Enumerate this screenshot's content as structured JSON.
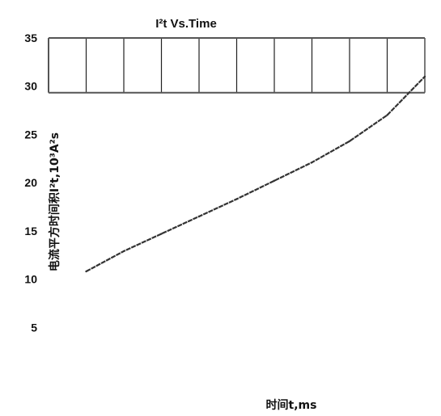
{
  "chart_data": {
    "type": "line",
    "title": "I²t  Vs.Time",
    "xlabel": "时间t,ms",
    "ylabel": "电流平方时间积I²t,10³A²s",
    "ylim": [
      0,
      35
    ],
    "yticks": [
      5,
      10,
      15,
      20,
      25,
      30,
      35
    ],
    "grid": true,
    "x_grid_positions": [
      1,
      2,
      3,
      4,
      5,
      6,
      7,
      8,
      9,
      10
    ],
    "xlim": [
      0,
      10
    ],
    "series": [
      {
        "x": [
          1.0,
          2.0,
          3.0,
          4.0,
          5.0,
          6.0,
          7.0,
          8.0,
          9.0,
          10.0
        ],
        "y": [
          10.8,
          12.9,
          14.7,
          16.5,
          18.3,
          20.2,
          22.1,
          24.3,
          27.0,
          31.0
        ]
      }
    ],
    "colors": {
      "line": "#333333",
      "grid": "#222222",
      "border": "#555555"
    }
  }
}
